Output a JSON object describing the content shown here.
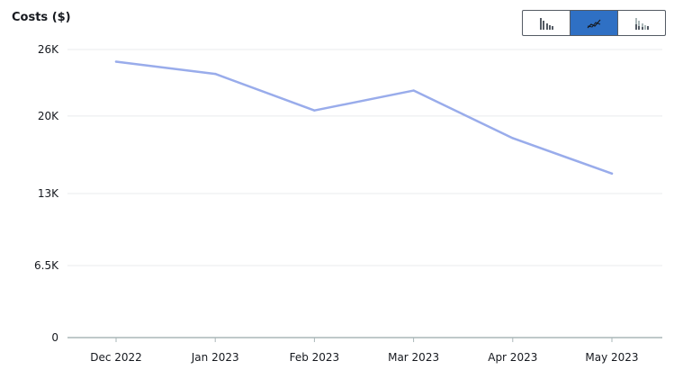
{
  "header": {
    "title": "Costs ($)",
    "view_toggle": {
      "options": [
        {
          "name": "grouped-bar-chart-icon",
          "selected": false
        },
        {
          "name": "line-chart-icon",
          "selected": true
        },
        {
          "name": "stacked-bar-chart-icon",
          "selected": false
        }
      ]
    }
  },
  "colors": {
    "series_line": "#99aceb",
    "grid": "#e9ebed",
    "axis": "#aab7b8",
    "toggle_active": "#2f70c4"
  },
  "chart_data": {
    "type": "line",
    "title": "Costs ($)",
    "categories": [
      "Dec 2022",
      "Jan 2023",
      "Feb 2023",
      "Mar 2023",
      "Apr 2023",
      "May 2023"
    ],
    "series": [
      {
        "values": [
          24900,
          23800,
          20500,
          22300,
          18000,
          14800
        ]
      }
    ],
    "yticks": [
      0,
      6500,
      13000,
      20000,
      26000
    ],
    "ytick_labels": [
      "0",
      "6.5K",
      "13K",
      "20K",
      "26K"
    ],
    "ylim": [
      0,
      26000
    ],
    "grid": true,
    "legend": "none"
  }
}
